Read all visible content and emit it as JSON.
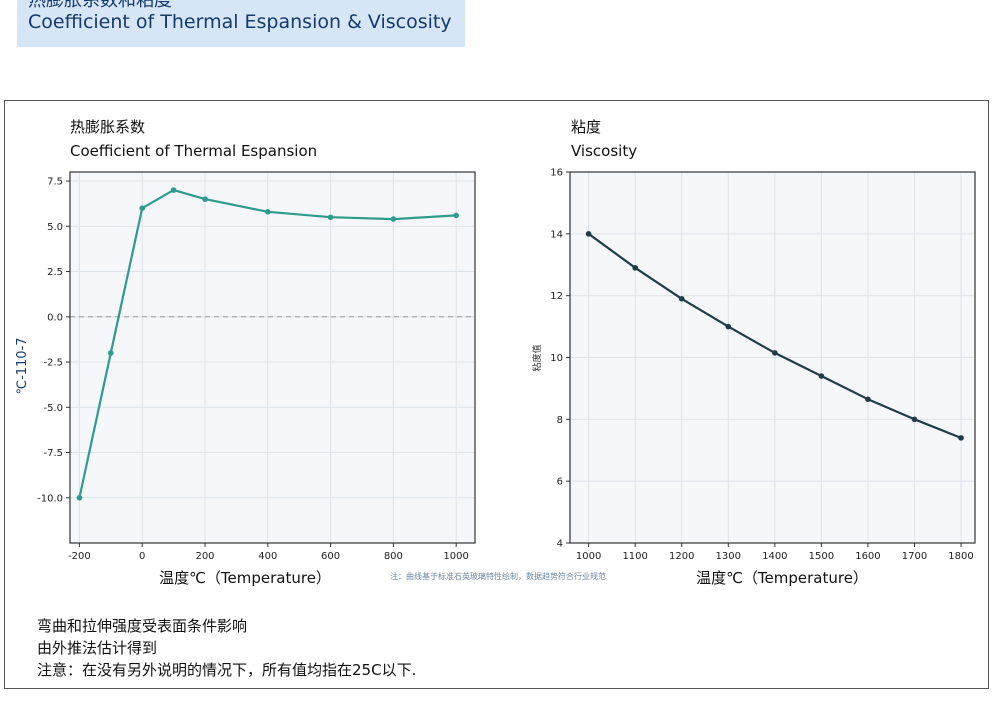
{
  "banner": {
    "title_cn": "热膨胀系数和粘度",
    "title_en": "Coefficient of Thermal Espansion & Viscosity"
  },
  "note_center": "注：曲线基于标准石英玻璃特性绘制，数据趋势符合行业规范",
  "notes": [
    "弯曲和拉伸强度受表面条件影响",
    "由外推法估计得到",
    "注意：在没有另外说明的情况下，所有值均指在25C以下."
  ],
  "chart_data": [
    {
      "type": "line",
      "title": "热膨胀系数",
      "subtitle": "Coefficient of Thermal Espansion",
      "xlabel": "温度℃（Temperature）",
      "ylabel": "℃-110-7",
      "xlim": [
        -230,
        1060
      ],
      "ylim": [
        -12.5,
        8.0
      ],
      "xticks": [
        "-200",
        "0",
        "200",
        "400",
        "600",
        "800",
        "1000"
      ],
      "xtick_values": [
        -200,
        0,
        200,
        400,
        600,
        800,
        1000
      ],
      "yticks": [
        "7.5",
        "5.0",
        "2.5",
        "0.0",
        "-2.5",
        "-5.0",
        "-7.5",
        "-10.0"
      ],
      "ytick_values": [
        7.5,
        5.0,
        2.5,
        0.0,
        -2.5,
        -5.0,
        -7.5,
        -10.0
      ],
      "grid": true,
      "reference_line": 0,
      "color": "#2e9b8c",
      "x": [
        -200,
        -100,
        0,
        100,
        200,
        400,
        600,
        800,
        1000
      ],
      "y": [
        -10.0,
        -2.0,
        6.0,
        7.0,
        6.5,
        5.8,
        5.5,
        5.4,
        5.6
      ]
    },
    {
      "type": "line",
      "title": "粘度",
      "subtitle": "Viscosity",
      "xlabel": "温度℃（Temperature）",
      "ylabel": "粘度值",
      "xlim": [
        960,
        1830
      ],
      "ylim": [
        4,
        16
      ],
      "xticks": [
        "1000",
        "1100",
        "1200",
        "1300",
        "1400",
        "1500",
        "1600",
        "1700",
        "1800"
      ],
      "xtick_values": [
        1000,
        1100,
        1200,
        1300,
        1400,
        1500,
        1600,
        1700,
        1800
      ],
      "yticks": [
        "16",
        "14",
        "12",
        "10",
        "8",
        "6",
        "4"
      ],
      "ytick_values": [
        16,
        14,
        12,
        10,
        8,
        6,
        4
      ],
      "grid": true,
      "color": "#1f3d47",
      "x": [
        1000,
        1100,
        1200,
        1300,
        1400,
        1500,
        1600,
        1700,
        1800
      ],
      "y": [
        14.0,
        12.9,
        11.9,
        11.0,
        10.15,
        9.4,
        8.65,
        8.0,
        7.4
      ]
    }
  ]
}
